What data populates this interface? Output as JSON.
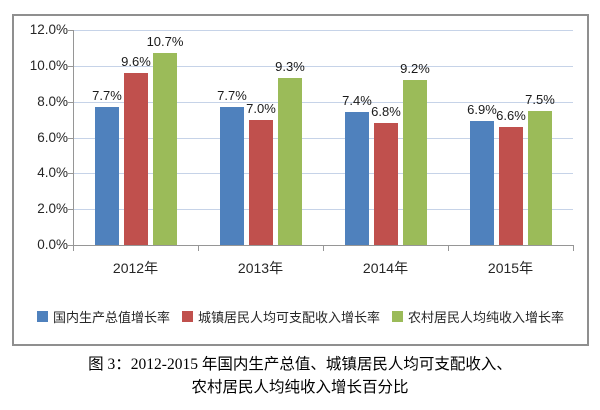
{
  "chart_data": {
    "type": "bar",
    "title": "",
    "categories": [
      "2012年",
      "2013年",
      "2014年",
      "2015年"
    ],
    "series": [
      {
        "name": "国内生产总值增长率",
        "color": "#4F81BD",
        "values": [
          7.7,
          7.7,
          7.4,
          6.9
        ]
      },
      {
        "name": "城镇居民人均可支配收入增长率",
        "color": "#C0504D",
        "values": [
          9.6,
          7.0,
          6.8,
          6.6
        ]
      },
      {
        "name": "农村居民人均纯收入增长率",
        "color": "#9BBB59",
        "values": [
          10.7,
          9.3,
          9.2,
          7.5
        ]
      }
    ],
    "data_labels": [
      [
        "7.7%",
        "7.7%",
        "7.4%",
        "6.9%"
      ],
      [
        "9.6%",
        "7.0%",
        "6.8%",
        "6.6%"
      ],
      [
        "10.7%",
        "9.3%",
        "9.2%",
        "7.5%"
      ]
    ],
    "y_axis": {
      "min": 0,
      "max": 12,
      "step": 2,
      "tick_labels": [
        "0.0%",
        "2.0%",
        "4.0%",
        "6.0%",
        "8.0%",
        "10.0%",
        "12.0%"
      ]
    },
    "xlabel": "",
    "ylabel": "",
    "grid": true,
    "legend_position": "bottom"
  },
  "colors": {
    "gridline": "#c6d3e8",
    "axis": "#969696",
    "frame_border": "#8f8f8f"
  },
  "caption": {
    "line1": "图 3：2012-2015 年国内生产总值、城镇居民人均可支配收入、",
    "line2": "农村居民人均纯收入增长百分比"
  }
}
